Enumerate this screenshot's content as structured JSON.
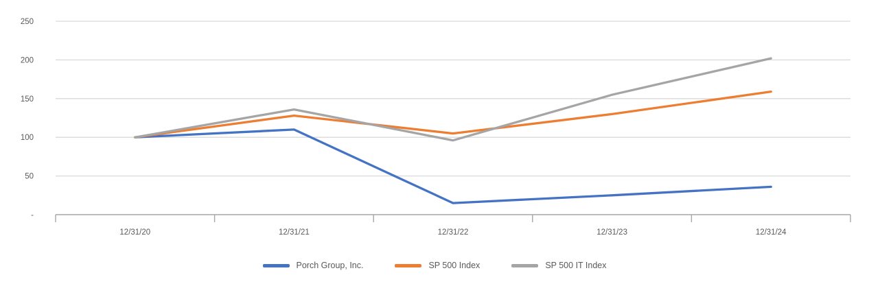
{
  "chart_data": {
    "type": "line",
    "title": "",
    "xlabel": "",
    "ylabel": "",
    "categories": [
      "12/31/20",
      "12/31/21",
      "12/31/22",
      "12/31/23",
      "12/31/24"
    ],
    "series": [
      {
        "name": "Porch Group, Inc.",
        "color": "#4472C4",
        "values": [
          100,
          110,
          15,
          25,
          36
        ]
      },
      {
        "name": "SP 500 Index",
        "color": "#ED7D31",
        "values": [
          100,
          128,
          105,
          130,
          159
        ]
      },
      {
        "name": "SP 500 IT Index",
        "color": "#A5A5A5",
        "values": [
          100,
          136,
          96,
          155,
          202
        ]
      }
    ],
    "y_axis": {
      "min": 0,
      "max": 250,
      "step": 50,
      "tick_labels": [
        "-",
        "50",
        "100",
        "150",
        "200",
        "250"
      ]
    },
    "grid": true,
    "legend_position": "bottom-center"
  },
  "styles": {
    "background": "#FFFFFF",
    "gridline_color": "#D9D9D9",
    "axis_color": "#A6A6A6",
    "label_color": "#595959"
  }
}
